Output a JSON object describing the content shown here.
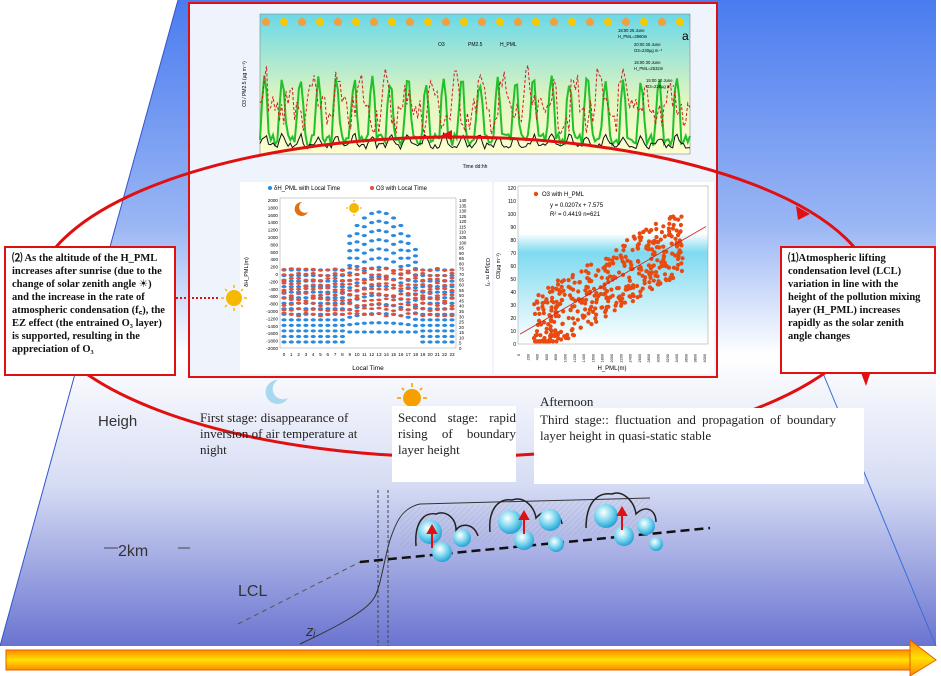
{
  "colors": {
    "frame_red": "#e01010",
    "ozone_green": "#22c02a",
    "pm_red": "#d02020",
    "hpml_black": "#111111",
    "scatter_orange": "#e84a10",
    "dh_blue": "#2a8ae0",
    "o3_red": "#e0503a",
    "arrow_yellow": "#f6c800"
  },
  "top_chart": {
    "panel_letter": "a",
    "legend": [
      "O3",
      "PM2.5",
      "H_PML"
    ],
    "xlabel": "Time dd:hh",
    "ylabel_left": "O3 / PM2.5 (µg m⁻³)",
    "annotations": [
      "18:00 25 June",
      "H_PML=3960m",
      "20:00 25 June",
      "O3=230µg m⁻³",
      "15:00 30 June",
      "H_PML=2532m",
      "15:00 30 June",
      "O3=220µg m⁻³"
    ]
  },
  "left_chart": {
    "legend": [
      "δH_PML with Local Time",
      "O3 with Local Time"
    ],
    "xlabel": "Local Time",
    "ylabel_left": "δH_PML(m)",
    "ylabel_right": "O3(µg m⁻³)",
    "yticks_left": [
      "2000",
      "1800",
      "1600",
      "1400",
      "1200",
      "1000",
      "800",
      "600",
      "400",
      "200",
      "0",
      "-200",
      "-400",
      "-600",
      "-800",
      "-1000",
      "-1200",
      "-1400",
      "-1600",
      "-1800",
      "-2000"
    ],
    "yticks_right": [
      "140",
      "135",
      "130",
      "125",
      "120",
      "115",
      "110",
      "105",
      "100",
      "95",
      "90",
      "85",
      "80",
      "75",
      "70",
      "65",
      "60",
      "55",
      "50",
      "45",
      "40",
      "35",
      "30",
      "25",
      "20",
      "15",
      "10",
      "5",
      "0"
    ],
    "xticks": [
      "0",
      "1",
      "2",
      "3",
      "4",
      "5",
      "6",
      "7",
      "8",
      "9",
      "10",
      "11",
      "12",
      "13",
      "14",
      "15",
      "16",
      "17",
      "18",
      "19",
      "20",
      "21",
      "22",
      "23"
    ]
  },
  "right_chart": {
    "legend": "O3 with H_PML",
    "equation": "y = 0.0207x + 7.575",
    "r2": "R² = 0.4419 n=621",
    "xlabel": "H_PML(m)",
    "ylabel": "O3(µg m⁻³)",
    "yticks": [
      "120",
      "110",
      "100",
      "90",
      "80",
      "70",
      "60",
      "50",
      "40",
      "30",
      "20",
      "10",
      "0"
    ],
    "xticks": [
      "0",
      "200",
      "400",
      "600",
      "800",
      "1000",
      "1200",
      "1400",
      "1600",
      "1800",
      "2000",
      "2200",
      "2400",
      "2600",
      "2800",
      "3000",
      "3200",
      "3400",
      "3600",
      "3800",
      "4000"
    ]
  },
  "left_box": {
    "text": "⑵ As the altitude of the H_PML increases after sunrise (due to the change of solar zenith angle ☀) and the increase in the rate of atmospheric condensation (f꜀), the EZ effect (the entrained O₃ layer) is supported, resulting in the appreciation of O₃"
  },
  "right_box": {
    "text": "⑴Atmospheric lifting condensation level (LCL) variation in line with the height of the pollution mixing layer (H_PML) increases rapidly as the solar zenith angle changes"
  },
  "diagram": {
    "height_label": "Heigh",
    "km_label": "2km",
    "lcl_label": "LCL",
    "zi_label": "zᵢ",
    "stage1": "First stage: disappearance of inversion of air temperature at night",
    "stage2": "Second stage: rapid rising of boundary layer height",
    "afternoon": "Afternoon",
    "stage3": "Third stage:: fluctuation and propagation of boundary layer height in quasi-static stable"
  }
}
